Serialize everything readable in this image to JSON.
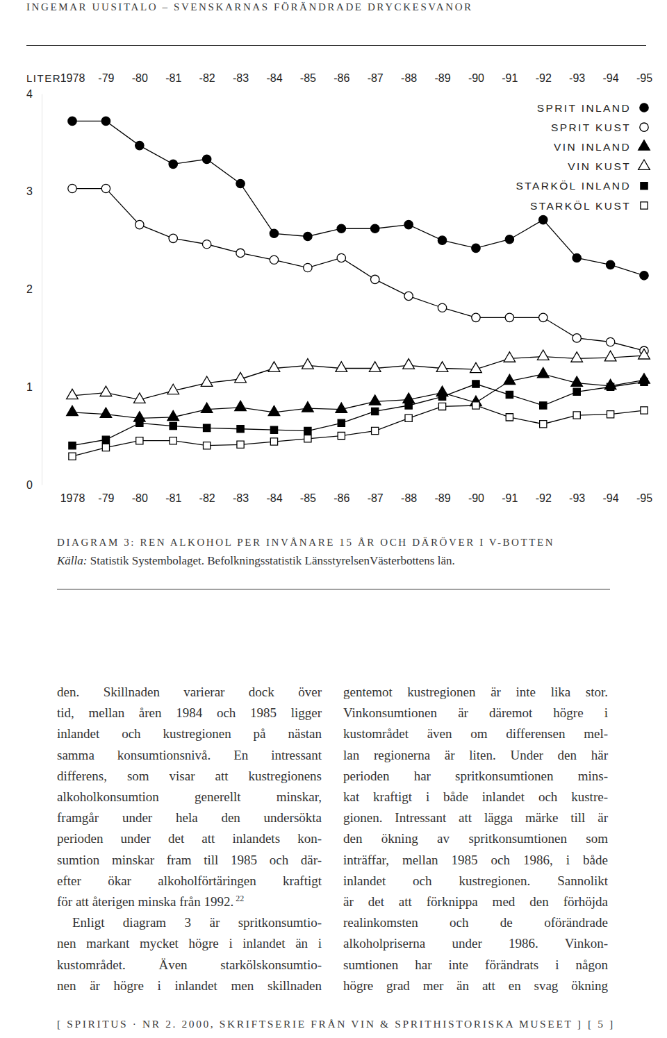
{
  "header": "INGEMAR UUSITALO – SVENSKARNAS FÖRÄNDRADE DRYCKESVANOR",
  "chart_data": {
    "type": "line",
    "y_label": "LITER",
    "categories": [
      "1978",
      "-79",
      "-80",
      "-81",
      "-82",
      "-83",
      "-84",
      "-85",
      "-86",
      "-87",
      "-88",
      "-89",
      "-90",
      "-91",
      "-92",
      "-93",
      "-94",
      "-95"
    ],
    "ylim": [
      0,
      4
    ],
    "yticks": [
      0,
      1,
      2,
      3,
      4
    ],
    "grid": false,
    "legend": "top-right",
    "series": [
      {
        "name": "SPRIT INLAND",
        "color": "#000000",
        "marker": "circle",
        "line_style": "solid",
        "values": [
          3.72,
          3.72,
          3.47,
          3.28,
          3.33,
          3.08,
          2.57,
          2.54,
          2.62,
          2.62,
          2.66,
          2.5,
          2.42,
          2.51,
          2.71,
          2.32,
          2.25,
          2.14
        ]
      },
      {
        "name": "SPRIT KUST",
        "color": "#000000",
        "marker": "circle-open",
        "line_style": "solid",
        "values": [
          3.03,
          3.03,
          2.66,
          2.52,
          2.46,
          2.37,
          2.3,
          2.22,
          2.32,
          2.1,
          1.93,
          1.81,
          1.71,
          1.71,
          1.71,
          1.5,
          1.46,
          1.37
        ]
      },
      {
        "name": "VIN INLAND",
        "color": "#000000",
        "marker": "triangle",
        "line_style": "solid",
        "values": [
          0.74,
          0.72,
          0.68,
          0.69,
          0.77,
          0.79,
          0.74,
          0.78,
          0.77,
          0.85,
          0.87,
          0.94,
          0.84,
          1.06,
          1.13,
          1.04,
          1.01,
          1.07
        ]
      },
      {
        "name": "VIN KUST",
        "color": "#000000",
        "marker": "triangle-open",
        "line_style": "solid",
        "values": [
          0.91,
          0.94,
          0.87,
          0.96,
          1.04,
          1.08,
          1.19,
          1.22,
          1.19,
          1.19,
          1.22,
          1.19,
          1.18,
          1.29,
          1.31,
          1.29,
          1.3,
          1.32
        ]
      },
      {
        "name": "STARKÖL INLAND",
        "color": "#000000",
        "marker": "square",
        "line_style": "solid",
        "values": [
          0.4,
          0.46,
          0.63,
          0.6,
          0.58,
          0.57,
          0.56,
          0.55,
          0.63,
          0.75,
          0.81,
          0.9,
          1.03,
          0.92,
          0.81,
          0.95,
          1.0,
          1.05
        ]
      },
      {
        "name": "STARKÖL KUST",
        "color": "#000000",
        "marker": "square-open",
        "line_style": "solid",
        "values": [
          0.29,
          0.38,
          0.45,
          0.45,
          0.4,
          0.41,
          0.44,
          0.47,
          0.5,
          0.55,
          0.68,
          0.8,
          0.81,
          0.69,
          0.62,
          0.71,
          0.72,
          0.76
        ]
      }
    ]
  },
  "figure": {
    "caption": "DIAGRAM 3: REN ALKOHOL PER INVÅNARE 15 ÅR OCH DÄRÖVER I V-BOTTEN",
    "source_label": "Källa:",
    "source": "Statistik Systembolaget. Befolkningsstatistik LänsstyrelsenVästerbottens län."
  },
  "document": {
    "left_column": [
      {
        "lines": [
          "den. Skillnaden varierar dock över",
          "tid, mellan åren 1984 och 1985 ligger",
          "inlandet och kustregionen på nästan",
          "samma konsumtionsnivå. En intressant",
          "differens, som visar att kustregionens",
          "alkoholkonsumtion generellt minskar,",
          "framgår under hela den undersökta",
          "perioden under det att inlandets kon-",
          "sumtion minskar fram till 1985 och där-",
          "efter ökar alkoholförtäringen kraftigt",
          "för att återigen minska från 1992."
        ],
        "footnote": "22"
      },
      {
        "lines": [
          "Enligt diagram 3 är spritkonsumtio-",
          "nen markant mycket högre i inlandet än i",
          "kustområdet. Även starkölskonsumtio-",
          "nen är högre i inlandet men skillnaden"
        ]
      }
    ],
    "right_column": [
      {
        "lines": [
          "gentemot kustregionen är inte lika stor.",
          "Vinkonsumtionen är däremot högre i",
          "kustområdet även om differensen mel-",
          "lan regionerna är liten. Under den här",
          "perioden har spritkonsumtionen mins-",
          "kat kraftigt i både inlandet och kustre-",
          "gionen. Intressant att lägga märke till är",
          "den ökning av spritkonsumtionen som",
          "inträffar, mellan 1985 och 1986, i både",
          "inlandet och kustregionen. Sannolikt",
          "är det att förknippa med den förhöjda",
          "realinkomsten och de oförändrade",
          "alkoholpriserna under 1986. Vinkon-",
          "sumtionen har inte förändrats i någon",
          "högre grad mer än att en svag ökning"
        ]
      }
    ]
  },
  "footer": {
    "text": "[ SPIRITUS · NR 2. 2000, SKRIFTSERIE FRÅN VIN & SPRITHISTORISKA MUSEET ]",
    "page": "[ 5 ]"
  }
}
